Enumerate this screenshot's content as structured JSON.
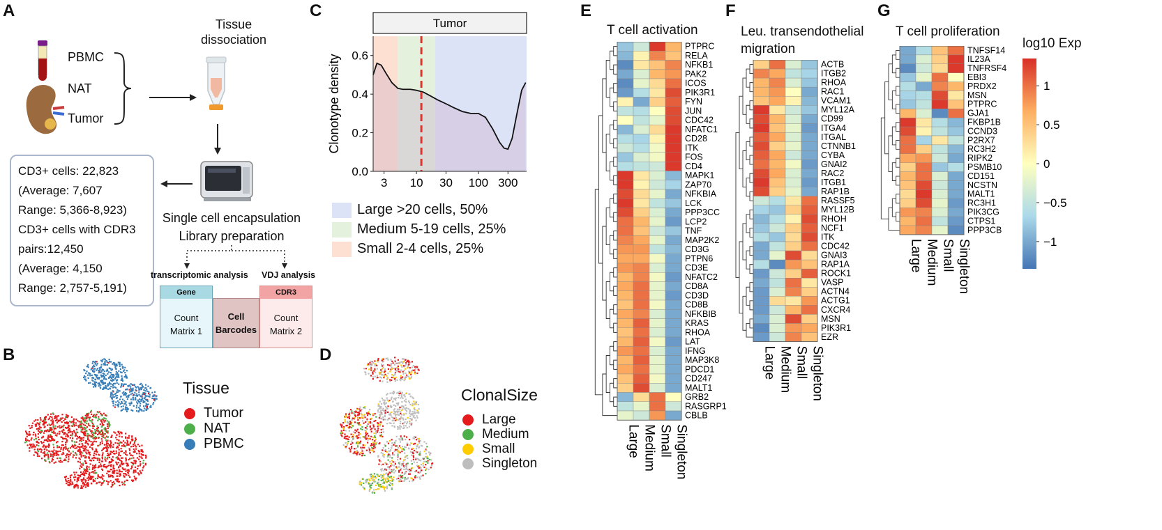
{
  "panel_letters": {
    "a": "A",
    "b": "B",
    "c": "C",
    "d": "D",
    "e": "E",
    "f": "F",
    "g": "G"
  },
  "panel_a": {
    "tissues": [
      "PBMC",
      "NAT",
      "Tumor"
    ],
    "step_dissociation": [
      "Tissue",
      "dissociation"
    ],
    "stats": [
      "CD3+ cells: 22,823",
      "(Average: 7,607",
      "Range: 5,366-8,923)",
      "CD3+ cells with CDR3",
      "pairs:12,450",
      "(Average: 4,150",
      "Range: 2,757-5,191)"
    ],
    "step_encapsulation": [
      "Single cell encapsulation",
      "Library preparation"
    ],
    "analysis_left": "transcriptomic analysis",
    "analysis_right": "VDJ analysis",
    "matrix1_head": "Gene",
    "matrix1_body": [
      "Count",
      "Matrix 1"
    ],
    "barcodes": [
      "Cell",
      "Barcodes"
    ],
    "matrix2_head": "CDR3",
    "matrix2_body": [
      "Count",
      "Matrix 2"
    ]
  },
  "panel_b": {
    "legend_title": "Tissue",
    "legend": [
      {
        "label": "Tumor",
        "color": "#e41a1c"
      },
      {
        "label": "NAT",
        "color": "#4daf4a"
      },
      {
        "label": "PBMC",
        "color": "#377eb8"
      }
    ]
  },
  "panel_d": {
    "legend_title": "ClonalSize",
    "legend": [
      {
        "label": "Large",
        "color": "#e41a1c"
      },
      {
        "label": "Medium",
        "color": "#4daf4a"
      },
      {
        "label": "Small",
        "color": "#ffcc00"
      },
      {
        "label": "Singleton",
        "color": "#bdbdbd"
      }
    ]
  },
  "chart_data": {
    "type": "area",
    "title": "Tumor",
    "ylabel": "Clonotype density",
    "xlabel": "",
    "x_scale": "log",
    "x_ticks": [
      3,
      10,
      30,
      100,
      300
    ],
    "x_tick_labels": [
      "3",
      "10",
      "30",
      "100",
      "300"
    ],
    "y_ticks": [
      0.0,
      0.2,
      0.4,
      0.6
    ],
    "y_tick_labels": [
      "0.0",
      "0.2",
      "0.4",
      "0.6"
    ],
    "ylim": [
      0,
      0.7
    ],
    "xlim": [
      2,
      600
    ],
    "vline_x": 12,
    "bands": [
      {
        "from": 2,
        "to": 5,
        "label": "Small 2-4 cells, 25%",
        "color": "#fde0d2"
      },
      {
        "from": 5,
        "to": 20,
        "label": "Medium 5-19 cells, 25%",
        "color": "#e4f2dd"
      },
      {
        "from": 20,
        "to": 600,
        "label": "Large >20 cells, 50%",
        "color": "#dde3f6"
      }
    ],
    "legend_order": [
      "Large >20 cells, 50%",
      "Medium 5-19 cells, 25%",
      "Small 2-4 cells, 25%"
    ],
    "x": [
      2,
      2.3,
      2.7,
      3.2,
      4,
      5,
      6,
      8,
      10,
      13,
      17,
      22,
      30,
      40,
      55,
      75,
      100,
      130,
      170,
      220,
      260,
      300,
      350,
      420,
      500,
      580
    ],
    "y": [
      0.5,
      0.56,
      0.55,
      0.51,
      0.46,
      0.43,
      0.425,
      0.425,
      0.42,
      0.41,
      0.39,
      0.37,
      0.35,
      0.33,
      0.31,
      0.3,
      0.3,
      0.28,
      0.22,
      0.15,
      0.12,
      0.115,
      0.17,
      0.3,
      0.42,
      0.46
    ]
  },
  "heatmaps": {
    "columns": [
      "Large",
      "Medium",
      "Small",
      "Singleton"
    ],
    "E": {
      "title": "T cell activation",
      "genes": [
        "PTPRC",
        "RELA",
        "NFKB1",
        "PAK2",
        "ICOS",
        "PIK3R1",
        "FYN",
        "JUN",
        "CDC42",
        "NFATC1",
        "CD28",
        "ITK",
        "FOS",
        "CD4",
        "MAPK1",
        "ZAP70",
        "NFKBIA",
        "LCK",
        "PPP3CC",
        "LCP2",
        "TNF",
        "MAP2K2",
        "CD3G",
        "PTPN6",
        "CD3E",
        "NFATC2",
        "CD8A",
        "CD3D",
        "CD8B",
        "NFKBIB",
        "KRAS",
        "RHOA",
        "LAT",
        "IFNG",
        "MAP3K8",
        "PDCD1",
        "CD247",
        "MALT1",
        "GRB2",
        "RASGRP1",
        "CBLB"
      ],
      "values": [
        [
          -0.8,
          -0.4,
          1.3,
          0.6
        ],
        [
          -0.9,
          0.1,
          0.9,
          0.5
        ],
        [
          -1.2,
          0.2,
          0.5,
          0.9
        ],
        [
          -1.0,
          -0.3,
          0.6,
          0.8
        ],
        [
          -1.2,
          -0.2,
          0.3,
          1.0
        ],
        [
          -1.1,
          -0.6,
          0.2,
          1.2
        ],
        [
          0.1,
          -1.0,
          0.4,
          1.1
        ],
        [
          -0.5,
          -0.6,
          0.0,
          1.2
        ],
        [
          0.0,
          -0.5,
          -0.2,
          1.2
        ],
        [
          -0.9,
          -0.3,
          0.3,
          1.3
        ],
        [
          -0.6,
          -0.7,
          0.1,
          1.3
        ],
        [
          -0.4,
          -0.6,
          -0.1,
          1.3
        ],
        [
          -0.8,
          -0.3,
          -0.1,
          1.3
        ],
        [
          -0.6,
          -0.5,
          -0.4,
          1.3
        ],
        [
          1.3,
          0.2,
          -0.3,
          -0.9
        ],
        [
          1.3,
          0.1,
          -0.4,
          -0.7
        ],
        [
          1.2,
          0.3,
          -0.2,
          -1.0
        ],
        [
          1.3,
          0.2,
          -0.5,
          -0.8
        ],
        [
          1.2,
          0.4,
          -0.3,
          -1.0
        ],
        [
          1.0,
          0.6,
          -0.2,
          -1.1
        ],
        [
          1.0,
          0.5,
          -0.4,
          -0.8
        ],
        [
          0.9,
          0.7,
          -0.2,
          -1.0
        ],
        [
          0.8,
          0.8,
          -0.5,
          -0.9
        ],
        [
          0.7,
          0.7,
          -0.1,
          -1.0
        ],
        [
          0.8,
          0.9,
          -0.3,
          -1.0
        ],
        [
          0.6,
          0.9,
          -0.1,
          -1.1
        ],
        [
          0.7,
          1.0,
          -0.2,
          -1.0
        ],
        [
          0.6,
          1.0,
          -0.2,
          -1.1
        ],
        [
          0.5,
          1.0,
          -0.1,
          -1.0
        ],
        [
          0.7,
          0.9,
          -0.3,
          -1.0
        ],
        [
          0.6,
          1.1,
          -0.2,
          -1.0
        ],
        [
          0.5,
          1.0,
          -0.3,
          -1.0
        ],
        [
          0.6,
          1.1,
          -0.1,
          -1.1
        ],
        [
          0.8,
          1.0,
          -0.3,
          -1.0
        ],
        [
          0.6,
          1.1,
          -0.2,
          -1.0
        ],
        [
          0.7,
          1.0,
          -0.2,
          -1.0
        ],
        [
          0.5,
          1.1,
          -0.1,
          -1.0
        ],
        [
          0.4,
          1.2,
          -0.3,
          -1.0
        ],
        [
          -0.9,
          0.3,
          1.0,
          0.0
        ],
        [
          -0.5,
          -0.2,
          1.0,
          -0.4
        ],
        [
          -0.2,
          -0.4,
          0.8,
          -1.0
        ]
      ]
    },
    "F": {
      "title": [
        "Leu. transendothelial",
        "migration"
      ],
      "genes": [
        "ACTB",
        "ITGB2",
        "RHOA",
        "RAC1",
        "VCAM1",
        "MYL12A",
        "CD99",
        "ITGA4",
        "ITGAL",
        "CTNNB1",
        "CYBA",
        "GNAI2",
        "RAC2",
        "ITGB1",
        "RAP1B",
        "RASSF5",
        "MYL12B",
        "RHOH",
        "NCF1",
        "ITK",
        "CDC42",
        "GNAI3",
        "RAP1A",
        "ROCK1",
        "VASP",
        "ACTN4",
        "ACTG1",
        "CXCR4",
        "MSN",
        "PIK3R1",
        "EZR"
      ],
      "values": [
        [
          0.4,
          1.0,
          -0.3,
          -0.8
        ],
        [
          0.9,
          0.7,
          -0.5,
          -0.7
        ],
        [
          0.6,
          0.9,
          -0.3,
          -0.8
        ],
        [
          0.6,
          0.8,
          0.0,
          -1.0
        ],
        [
          0.5,
          0.7,
          0.1,
          -0.9
        ],
        [
          1.3,
          0.2,
          -0.4,
          -0.8
        ],
        [
          1.2,
          0.6,
          -0.3,
          -1.0
        ],
        [
          1.3,
          0.5,
          -0.2,
          -1.1
        ],
        [
          1.1,
          0.7,
          -0.3,
          -1.0
        ],
        [
          1.2,
          0.4,
          -0.2,
          -1.0
        ],
        [
          1.1,
          0.7,
          -0.4,
          -1.0
        ],
        [
          1.0,
          0.6,
          -0.1,
          -1.1
        ],
        [
          1.2,
          0.7,
          -0.3,
          -1.0
        ],
        [
          1.3,
          0.5,
          -0.3,
          -1.1
        ],
        [
          1.2,
          0.4,
          -0.2,
          -1.0
        ],
        [
          -0.4,
          -0.6,
          0.2,
          1.0
        ],
        [
          -0.7,
          -0.8,
          0.4,
          1.1
        ],
        [
          -0.9,
          -0.6,
          0.1,
          1.2
        ],
        [
          -0.8,
          -0.4,
          0.4,
          1.1
        ],
        [
          -0.6,
          -0.8,
          0.3,
          1.2
        ],
        [
          -1.0,
          -0.5,
          0.4,
          1.0
        ],
        [
          -1.0,
          -0.2,
          1.2,
          0.3
        ],
        [
          -0.6,
          -1.2,
          0.8,
          0.5
        ],
        [
          -1.1,
          -0.4,
          0.4,
          1.1
        ],
        [
          -1.0,
          -0.5,
          1.0,
          0.2
        ],
        [
          -1.1,
          -0.3,
          0.9,
          0.4
        ],
        [
          -1.1,
          0.3,
          0.2,
          0.8
        ],
        [
          -1.1,
          -0.4,
          0.6,
          1.0
        ],
        [
          -1.0,
          -0.3,
          1.2,
          0.4
        ],
        [
          -1.2,
          -0.3,
          0.8,
          0.7
        ],
        [
          -1.1,
          -0.4,
          0.9,
          0.5
        ]
      ]
    },
    "G": {
      "title": "T cell proliferation",
      "genes": [
        "TNFSF14",
        "IL23A",
        "TNFRSF4",
        "EBI3",
        "PRDX2",
        "MSN",
        "PTPRC",
        "GJA1",
        "FKBP1B",
        "CCND3",
        "P2RX7",
        "RC3H2",
        "RIPK2",
        "PSMB10",
        "CD151",
        "NCSTN",
        "MALT1",
        "RC3H1",
        "PIK3CG",
        "CTPS1",
        "PPP3CB"
      ],
      "values": [
        [
          -1.0,
          -0.6,
          0.5,
          1.0
        ],
        [
          -1.0,
          -0.3,
          0.4,
          1.3
        ],
        [
          -1.2,
          -0.4,
          0.3,
          1.3
        ],
        [
          -0.8,
          -0.2,
          1.0,
          0.0
        ],
        [
          -0.6,
          -1.0,
          0.9,
          0.6
        ],
        [
          -0.7,
          -0.6,
          1.2,
          0.2
        ],
        [
          -0.8,
          -0.5,
          1.3,
          0.5
        ],
        [
          0.6,
          -0.3,
          -1.2,
          1.0
        ],
        [
          1.3,
          0.2,
          -0.6,
          -0.9
        ],
        [
          1.2,
          0.1,
          -0.5,
          -0.8
        ],
        [
          1.0,
          -0.7,
          0.2,
          -0.5
        ],
        [
          1.0,
          0.4,
          -0.5,
          -0.9
        ],
        [
          0.7,
          0.8,
          -0.4,
          -1.0
        ],
        [
          0.4,
          1.0,
          -0.8,
          -0.6
        ],
        [
          0.6,
          1.0,
          -0.3,
          -1.0
        ],
        [
          0.5,
          1.2,
          -0.4,
          -1.0
        ],
        [
          0.3,
          1.3,
          -0.3,
          -1.0
        ],
        [
          0.4,
          1.2,
          -0.2,
          -1.1
        ],
        [
          0.8,
          0.9,
          -0.3,
          -1.0
        ],
        [
          0.6,
          1.0,
          -0.5,
          -1.1
        ],
        [
          0.7,
          0.9,
          -0.2,
          -1.2
        ]
      ]
    },
    "colorbar": {
      "title": "log10 Exp",
      "ticks": [
        1,
        0.5,
        0,
        -0.5,
        -1
      ],
      "tick_labels": [
        "1",
        "0.5",
        "0",
        "−0.5",
        "−1"
      ],
      "range": [
        -1.35,
        1.35
      ],
      "colors": {
        "low": "#4575b4",
        "mid_low": "#abd9e9",
        "mid": "#ffffbf",
        "mid_high": "#fdae61",
        "high": "#d73027"
      }
    }
  }
}
